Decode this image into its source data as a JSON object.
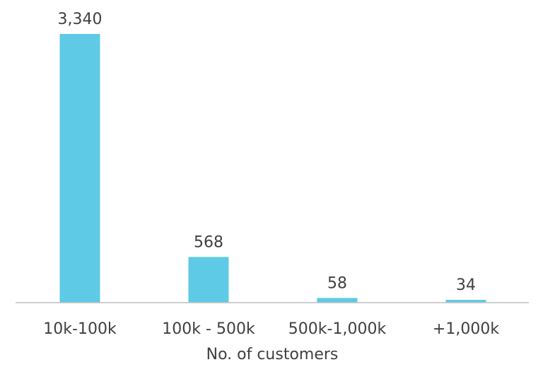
{
  "chart_data": {
    "type": "bar",
    "categories": [
      "10k-100k",
      "100k - 500k",
      "500k-1,000k",
      "+1,000k"
    ],
    "values": [
      3340,
      568,
      58,
      34
    ],
    "value_labels": [
      "3,340",
      "568",
      "58",
      "34"
    ],
    "title": "",
    "xlabel": "No. of customers",
    "ylabel": "",
    "ylim": [
      0,
      3340
    ],
    "grid": false,
    "legend": "none",
    "bar_color": "#5ecae6",
    "axis_line_color": "#bfbfbf",
    "text_color": "#404040"
  }
}
